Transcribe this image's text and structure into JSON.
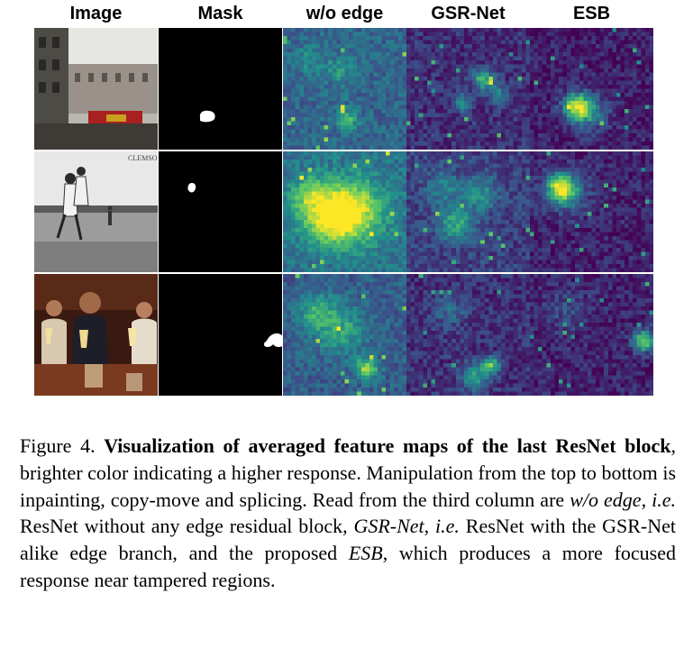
{
  "figure": {
    "columns": [
      "Image",
      "Mask",
      "w/o edge",
      "GSR-Net",
      "ESB"
    ],
    "rows": [
      {
        "manipulation": "inpainting",
        "image_overlay_text": ""
      },
      {
        "manipulation": "copy-move",
        "image_overlay_text": "CLEMSON"
      },
      {
        "manipulation": "splicing",
        "image_overlay_text": ""
      }
    ],
    "colormap": [
      "#440154",
      "#3b528b",
      "#21908c",
      "#5dc863",
      "#fde725"
    ]
  },
  "caption": {
    "figure_label": "Figure 4.",
    "bold_title": "Visualization of averaged feature maps of the last ResNet block",
    "text_1": ", brighter color indicating a higher response. Manipulation from the top to bottom is inpainting, copy-move and splicing. Read from the third column are ",
    "wo_edge": "w/o edge",
    "sep_1": ", ",
    "ie_1": "i.e.",
    "text_2": " ResNet without any edge residual block, ",
    "gsr_net": "GSR-Net",
    "sep_2": ", ",
    "ie_2": "i.e.",
    "text_3": " ResNet with the GSR-Net alike edge branch, and the proposed ",
    "esb": "ESB",
    "text_4": ", which produces a more focused response near tampered regions."
  }
}
